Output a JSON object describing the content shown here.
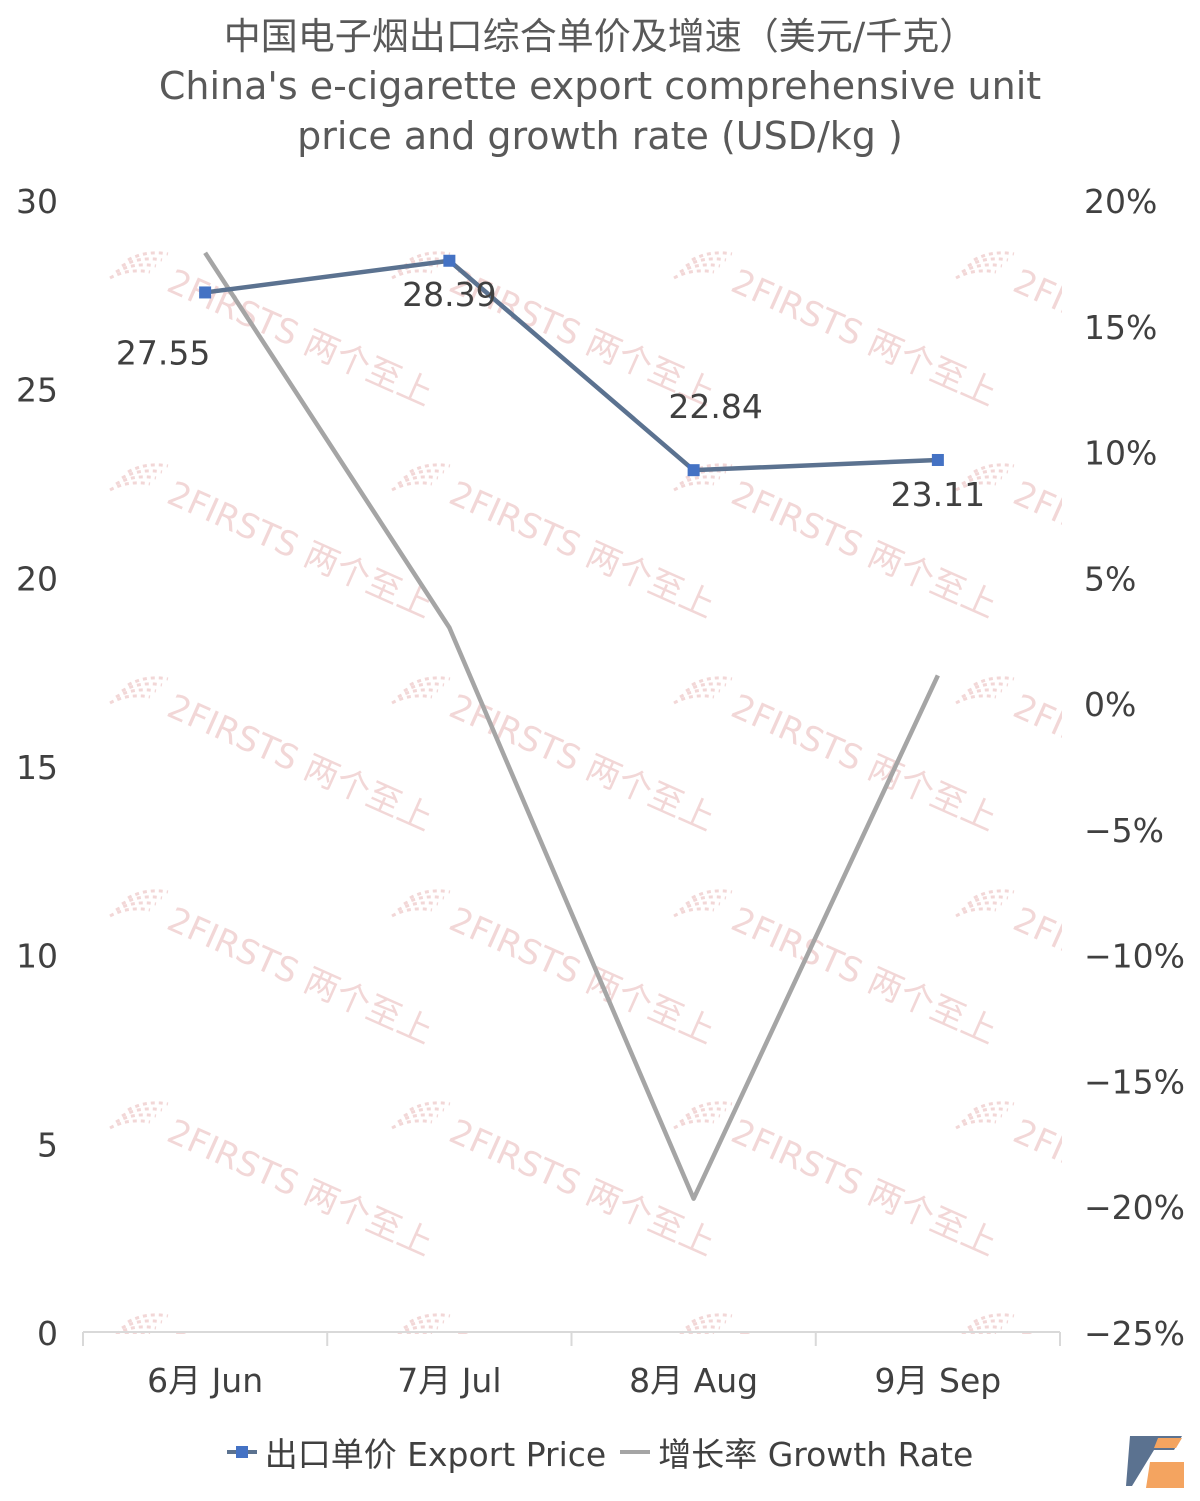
{
  "chart_data": {
    "type": "line",
    "title_cn": "中国电子烟出口综合单价及增速（美元/千克）",
    "title_en_line1": "China's e-cigarette export comprehensive unit",
    "title_en_line2": "price and growth rate (USD/kg )",
    "categories": [
      "6月 Jun",
      "7月 Jul",
      "8月 Aug",
      "9月 Sep"
    ],
    "y_left": {
      "min": 0,
      "max": 30,
      "ticks": [
        "0",
        "5",
        "10",
        "15",
        "20",
        "25",
        "30"
      ]
    },
    "y_right": {
      "min": -25,
      "max": 20,
      "ticks": [
        "−25%",
        "−20%",
        "−15%",
        "−10%",
        "−5%",
        "0%",
        "5%",
        "10%",
        "15%",
        "20%"
      ]
    },
    "series": [
      {
        "name": "出口单价 Export Price",
        "axis": "left",
        "color": "#5b7290",
        "marker_color": "#4472c4",
        "values": [
          27.55,
          28.39,
          22.84,
          23.11
        ],
        "labels": [
          "27.55",
          "28.39",
          "22.84",
          "23.11"
        ]
      },
      {
        "name": "增长率 Growth Rate",
        "axis": "right",
        "color": "#a5a5a5",
        "values": [
          17.9,
          3.0,
          -19.7,
          1.1
        ]
      }
    ],
    "grid": false,
    "legend_position": "bottom"
  },
  "watermark": "2FIRSTS 两个至上",
  "colors": {
    "watermark": "#e8b8b8",
    "axis": "#d9d9d9",
    "logo_blue": "#5b7290",
    "logo_orange": "#f4a460"
  }
}
